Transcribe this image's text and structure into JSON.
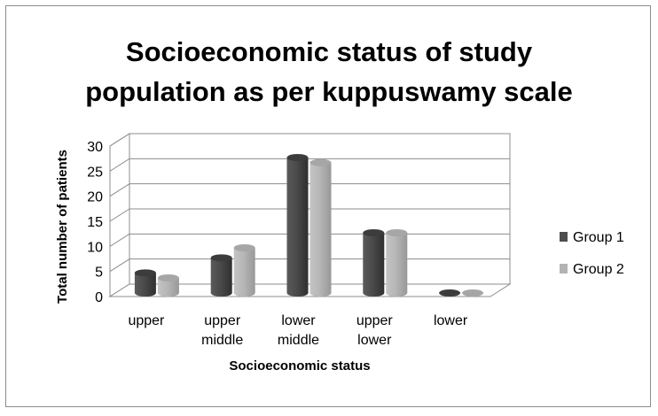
{
  "chart_data": {
    "type": "bar",
    "style": "3d-cylinder",
    "title": "Socioeconomic status of study population as per kuppuswamy scale",
    "xlabel": "Socioeconomic status",
    "ylabel": "Total number of patients",
    "categories": [
      [
        "upper"
      ],
      [
        "upper",
        "middle"
      ],
      [
        "lower",
        "middle"
      ],
      [
        "upper",
        "lower"
      ],
      [
        "lower"
      ]
    ],
    "series": [
      {
        "name": "Group 1",
        "values": [
          4,
          7,
          27,
          12,
          0
        ],
        "color": "#4d4d4d"
      },
      {
        "name": "Group 2",
        "values": [
          3,
          9,
          26,
          12,
          0
        ],
        "color": "#b3b3b3"
      }
    ],
    "ylim": [
      0,
      30
    ],
    "yticks": [
      "0",
      "5",
      "10",
      "15",
      "20",
      "25",
      "30"
    ],
    "grid": true,
    "legend": "right"
  }
}
